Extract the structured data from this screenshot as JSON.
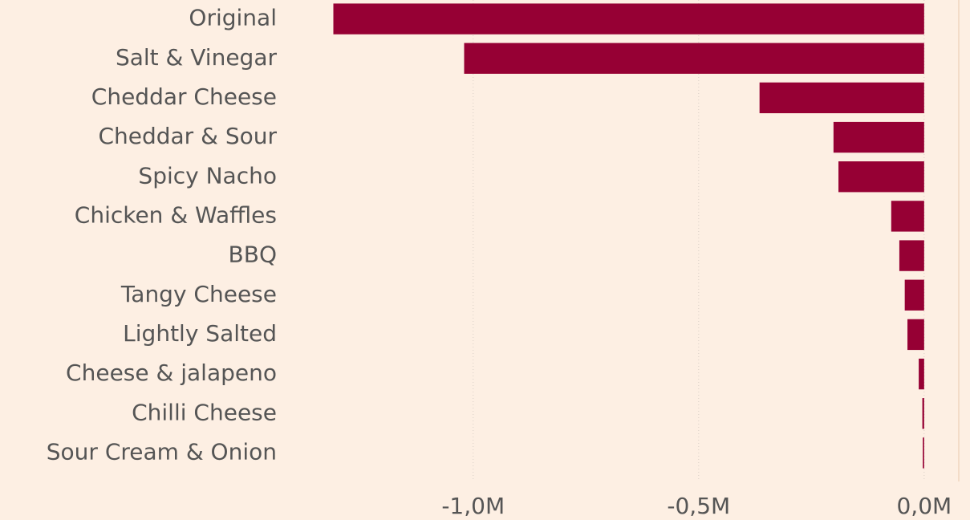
{
  "chart_data": {
    "type": "barh",
    "categories": [
      "Original",
      "Salt & Vinegar",
      "Cheddar Cheese",
      "Cheddar & Sour",
      "Spicy Nacho",
      "Chicken & Waffles",
      "BBQ",
      "Tangy Cheese",
      "Lightly Salted",
      "Cheese & jalapeno",
      "Chilli Cheese",
      "Sour Cream & Onion"
    ],
    "values": [
      -1310000,
      -1020000,
      -365000,
      -201000,
      -190000,
      -73000,
      -55000,
      -43000,
      -37000,
      -12000,
      -4000,
      -3000
    ],
    "color": "#960034",
    "xlim": [
      -1350000,
      75000
    ],
    "xticks": [
      {
        "value": -1000000,
        "label": "-1,0M"
      },
      {
        "value": -500000,
        "label": "-0,5M"
      },
      {
        "value": 0,
        "label": "0,0M"
      }
    ],
    "grid": true
  }
}
